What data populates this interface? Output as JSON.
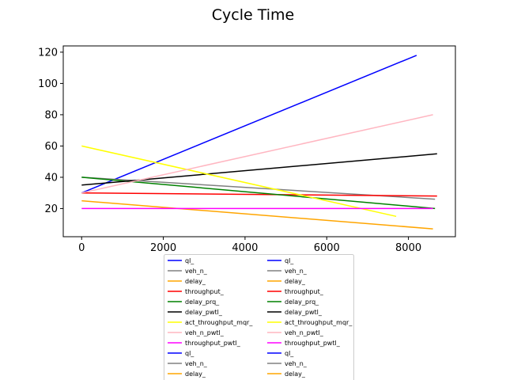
{
  "chart_data": {
    "type": "line",
    "title": "Cycle Time",
    "xlabel": "",
    "ylabel": "",
    "xlim": [
      -450,
      9150
    ],
    "ylim": [
      2,
      124
    ],
    "x_ticks": [
      0,
      2000,
      4000,
      6000,
      8000
    ],
    "x_tick_labels": [
      "0",
      "2000",
      "4000",
      "6000",
      "8000"
    ],
    "y_ticks": [
      20,
      40,
      60,
      80,
      100,
      120
    ],
    "y_tick_labels": [
      "20",
      "40",
      "60",
      "80",
      "100",
      "120"
    ],
    "grid": false,
    "legend_position": "bottom-center",
    "legend_entries": [
      {
        "name": "ql_",
        "color": "#0000ff"
      },
      {
        "name": "veh_n_",
        "color": "#808080"
      },
      {
        "name": "delay_",
        "color": "#ffa500"
      },
      {
        "name": "throughput_",
        "color": "#ff0000"
      },
      {
        "name": "delay_prq_",
        "color": "#008000"
      },
      {
        "name": "delay_pwtl_",
        "color": "#000000"
      },
      {
        "name": "act_throughput_mqr_",
        "color": "#ffff00"
      },
      {
        "name": "veh_n_pwtl_",
        "color": "#ffb6c1"
      },
      {
        "name": "throughput_pwtl_",
        "color": "#ff00ff"
      },
      {
        "name": "ql_",
        "color": "#0000ff"
      },
      {
        "name": "veh_n_",
        "color": "#808080"
      },
      {
        "name": "delay_",
        "color": "#ffa500"
      },
      {
        "name": "ql_",
        "color": "#0000ff"
      },
      {
        "name": "veh_n_",
        "color": "#808080"
      },
      {
        "name": "delay_",
        "color": "#ffa500"
      },
      {
        "name": "throughput_",
        "color": "#ff0000"
      },
      {
        "name": "delay_prq_",
        "color": "#008000"
      },
      {
        "name": "delay_pwtl_",
        "color": "#000000"
      },
      {
        "name": "act_throughput_mqr_",
        "color": "#ffff00"
      },
      {
        "name": "veh_n_pwtl_",
        "color": "#ffb6c1"
      },
      {
        "name": "throughput_pwtl_",
        "color": "#ff00ff"
      },
      {
        "name": "ql_",
        "color": "#0000ff"
      },
      {
        "name": "veh_n_",
        "color": "#808080"
      },
      {
        "name": "delay_",
        "color": "#ffa500"
      }
    ],
    "series": [
      {
        "color": "#0000ff",
        "x": [
          0,
          8200
        ],
        "values": [
          30,
          118
        ]
      },
      {
        "color": "#808080",
        "x": [
          0,
          8650
        ],
        "values": [
          40,
          26
        ]
      },
      {
        "color": "#ffa500",
        "x": [
          0,
          8600
        ],
        "values": [
          25,
          7
        ]
      },
      {
        "color": "#ff0000",
        "x": [
          0,
          8700
        ],
        "values": [
          30,
          28
        ]
      },
      {
        "color": "#008000",
        "x": [
          0,
          8650
        ],
        "values": [
          40,
          20
        ]
      },
      {
        "color": "#000000",
        "x": [
          0,
          8700
        ],
        "values": [
          35,
          55
        ]
      },
      {
        "color": "#ffff00",
        "x": [
          0,
          7700
        ],
        "values": [
          60,
          15
        ]
      },
      {
        "color": "#ffb6c1",
        "x": [
          0,
          8600
        ],
        "values": [
          30,
          80
        ]
      },
      {
        "color": "#ff00ff",
        "x": [
          0,
          8600
        ],
        "values": [
          20,
          20
        ]
      }
    ]
  }
}
